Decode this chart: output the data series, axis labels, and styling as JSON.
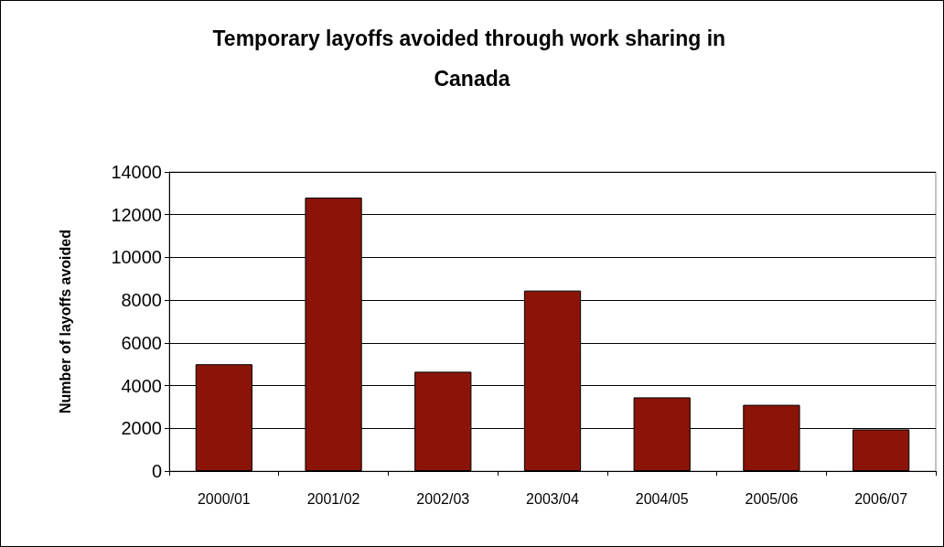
{
  "chart_data": {
    "type": "bar",
    "title": "Temporary layoffs avoided through work sharing in Canada",
    "ylabel": "Number of layoffs avoided",
    "categories": [
      "2000/01",
      "2001/02",
      "2002/03",
      "2003/04",
      "2004/05",
      "2005/06",
      "2006/07"
    ],
    "values": [
      5000,
      12800,
      4650,
      8450,
      3450,
      3100,
      1950
    ],
    "color": "#8b1409",
    "ylim": [
      0,
      14000
    ],
    "yticks": [
      0,
      2000,
      4000,
      6000,
      8000,
      10000,
      12000,
      14000
    ],
    "grid": "y"
  }
}
